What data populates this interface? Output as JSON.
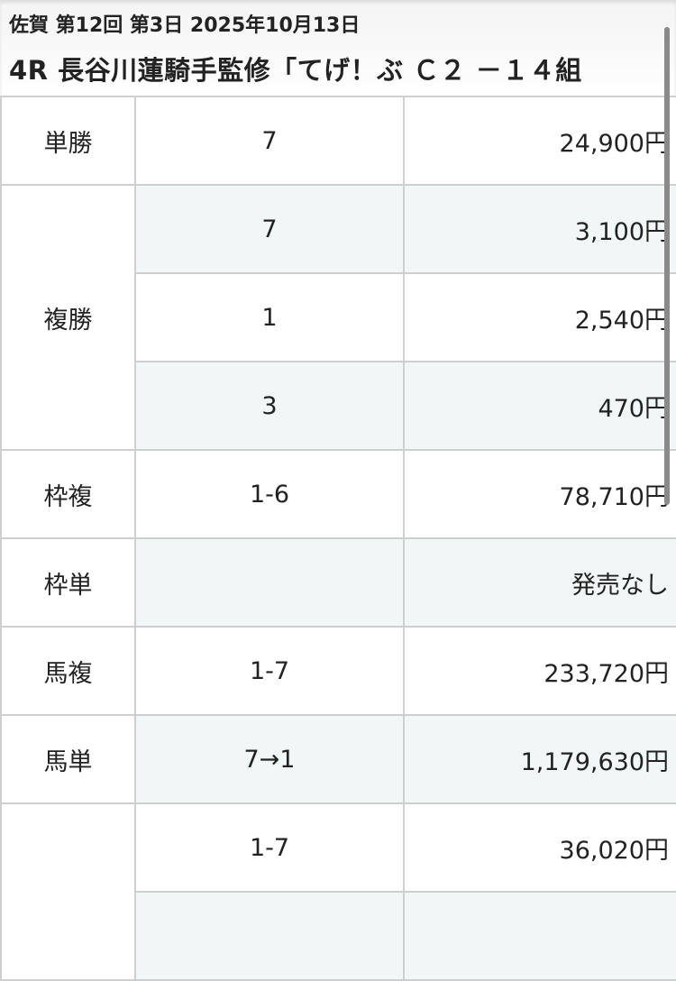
{
  "header": {
    "meta": "佐賀 第12回 第3日 2025年10月13日",
    "race_title": "4R  長谷川蓮騎手監修「てげ！ぶ Ｃ２ －１４組"
  },
  "payouts": [
    {
      "label": "単勝",
      "rows": [
        {
          "combo": "7",
          "payout": "24,900円"
        }
      ]
    },
    {
      "label": "複勝",
      "rows": [
        {
          "combo": "7",
          "payout": "3,100円"
        },
        {
          "combo": "1",
          "payout": "2,540円"
        },
        {
          "combo": "3",
          "payout": "470円"
        }
      ]
    },
    {
      "label": "枠複",
      "rows": [
        {
          "combo": "1-6",
          "payout": "78,710円"
        }
      ]
    },
    {
      "label": "枠単",
      "rows": [
        {
          "combo": "",
          "payout": "発売なし"
        }
      ]
    },
    {
      "label": "馬複",
      "rows": [
        {
          "combo": "1-7",
          "payout": "233,720円"
        }
      ]
    },
    {
      "label": "馬単",
      "rows": [
        {
          "combo": "7→1",
          "payout": "1,179,630円"
        }
      ]
    },
    {
      "label": "",
      "rows": [
        {
          "combo": "1-7",
          "payout": "36,020円"
        },
        {
          "combo": "",
          "payout": ""
        }
      ]
    }
  ],
  "colors": {
    "shade": "#f1f6f6",
    "border": "#cfcfcf"
  }
}
